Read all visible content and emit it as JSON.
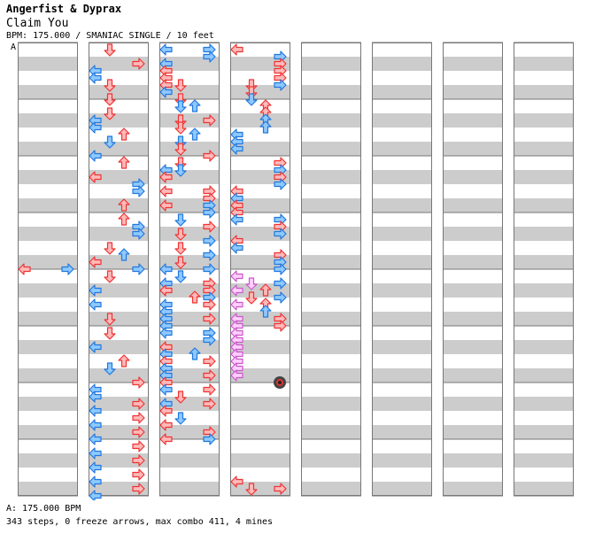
{
  "header": {
    "artist": "Angerfist & Dyprax",
    "song": "Claim You",
    "meta": "BPM: 175.000 / SMANIAC SINGLE / 10 feet",
    "segment_label": "A"
  },
  "footer": {
    "bpm_line": "A: 175.000 BPM",
    "stats_line": "343 steps, 0 freeze arrows, max combo 411, 4 mines"
  },
  "colors": {
    "band": "#cccccc",
    "border": "#777777",
    "red_fill": "#ffb9b9",
    "red_stroke": "#ee3333",
    "blue_fill": "#8ec9ff",
    "blue_stroke": "#2277dd",
    "pink_fill": "#ffd0ff",
    "pink_stroke": "#cc55cc",
    "mine_outer": "#444444",
    "mine_red": "#dd3333",
    "mine_blue": "#3377cc"
  },
  "chart_data": {
    "type": "step-chart",
    "lanes": [
      "left",
      "down",
      "up",
      "right"
    ],
    "columns": 8,
    "rows_per_column": 32,
    "step_types": {
      "r": "quarter note (red)",
      "b": "eighth note (blue)",
      "p": "sixteenth note (pink)",
      "m": "mine"
    },
    "notes": [
      [
        [
          31,
          0,
          "r"
        ],
        [
          31,
          3,
          "b"
        ]
      ],
      [
        [
          0,
          1,
          "r"
        ],
        [
          2,
          3,
          "r"
        ],
        [
          3,
          0,
          "b"
        ],
        [
          4,
          0,
          "b"
        ],
        [
          5,
          1,
          "r"
        ],
        [
          7,
          1,
          "r"
        ],
        [
          9,
          1,
          "r"
        ],
        [
          10,
          0,
          "b"
        ],
        [
          11,
          0,
          "b"
        ],
        [
          12,
          2,
          "r"
        ],
        [
          13,
          1,
          "b"
        ],
        [
          15,
          0,
          "b"
        ],
        [
          16,
          2,
          "r"
        ],
        [
          18,
          0,
          "r"
        ],
        [
          19,
          3,
          "b"
        ],
        [
          20,
          3,
          "b"
        ],
        [
          22,
          2,
          "r"
        ],
        [
          24,
          2,
          "r"
        ],
        [
          25,
          3,
          "b"
        ],
        [
          26,
          3,
          "b"
        ],
        [
          28,
          1,
          "r"
        ],
        [
          29,
          2,
          "b"
        ],
        [
          30,
          0,
          "r"
        ],
        [
          31,
          3,
          "b"
        ],
        [
          32,
          1,
          "r"
        ],
        [
          34,
          0,
          "b"
        ],
        [
          36,
          0,
          "b"
        ],
        [
          38,
          1,
          "r"
        ],
        [
          40,
          1,
          "r"
        ],
        [
          42,
          0,
          "b"
        ],
        [
          44,
          2,
          "r"
        ],
        [
          45,
          1,
          "b"
        ],
        [
          47,
          3,
          "r"
        ],
        [
          48,
          0,
          "b"
        ],
        [
          49,
          0,
          "b"
        ],
        [
          50,
          3,
          "r"
        ],
        [
          51,
          0,
          "b"
        ],
        [
          52,
          3,
          "r"
        ],
        [
          53,
          0,
          "b"
        ],
        [
          54,
          3,
          "r"
        ],
        [
          55,
          0,
          "b"
        ],
        [
          56,
          3,
          "r"
        ],
        [
          57,
          0,
          "b"
        ],
        [
          58,
          3,
          "r"
        ],
        [
          59,
          0,
          "b"
        ],
        [
          60,
          3,
          "r"
        ],
        [
          61,
          0,
          "b"
        ],
        [
          62,
          3,
          "r"
        ],
        [
          63,
          0,
          "b"
        ]
      ],
      [
        [
          0,
          0,
          "b"
        ],
        [
          0,
          3,
          "b"
        ],
        [
          1,
          3,
          "b"
        ],
        [
          2,
          0,
          "b"
        ],
        [
          3,
          0,
          "r"
        ],
        [
          4,
          0,
          "r"
        ],
        [
          5,
          1,
          "r"
        ],
        [
          5,
          0,
          "r"
        ],
        [
          6,
          0,
          "b"
        ],
        [
          7,
          1,
          "r"
        ],
        [
          8,
          1,
          "b"
        ],
        [
          8,
          2,
          "b"
        ],
        [
          10,
          1,
          "r"
        ],
        [
          10,
          3,
          "r"
        ],
        [
          11,
          1,
          "r"
        ],
        [
          12,
          2,
          "b"
        ],
        [
          13,
          1,
          "b"
        ],
        [
          14,
          1,
          "r"
        ],
        [
          15,
          3,
          "r"
        ],
        [
          16,
          1,
          "r"
        ],
        [
          17,
          0,
          "b"
        ],
        [
          17,
          1,
          "b"
        ],
        [
          18,
          0,
          "r"
        ],
        [
          20,
          0,
          "r"
        ],
        [
          20,
          3,
          "r"
        ],
        [
          21,
          3,
          "r"
        ],
        [
          22,
          0,
          "r"
        ],
        [
          22,
          3,
          "b"
        ],
        [
          23,
          3,
          "b"
        ],
        [
          24,
          1,
          "b"
        ],
        [
          25,
          3,
          "r"
        ],
        [
          26,
          1,
          "r"
        ],
        [
          27,
          3,
          "b"
        ],
        [
          28,
          1,
          "r"
        ],
        [
          29,
          3,
          "b"
        ],
        [
          30,
          1,
          "r"
        ],
        [
          31,
          0,
          "b"
        ],
        [
          31,
          3,
          "b"
        ],
        [
          32,
          1,
          "b"
        ],
        [
          33,
          0,
          "b"
        ],
        [
          33,
          3,
          "r"
        ],
        [
          34,
          0,
          "r"
        ],
        [
          34,
          3,
          "r"
        ],
        [
          35,
          2,
          "r"
        ],
        [
          35,
          3,
          "b"
        ],
        [
          36,
          0,
          "b"
        ],
        [
          36,
          3,
          "r"
        ],
        [
          37,
          0,
          "b"
        ],
        [
          38,
          0,
          "b"
        ],
        [
          38,
          3,
          "r"
        ],
        [
          39,
          0,
          "b"
        ],
        [
          40,
          0,
          "b"
        ],
        [
          40,
          3,
          "b"
        ],
        [
          41,
          3,
          "b"
        ],
        [
          42,
          0,
          "r"
        ],
        [
          43,
          0,
          "b"
        ],
        [
          43,
          2,
          "b"
        ],
        [
          44,
          0,
          "r"
        ],
        [
          44,
          3,
          "r"
        ],
        [
          45,
          0,
          "b"
        ],
        [
          46,
          0,
          "b"
        ],
        [
          46,
          3,
          "r"
        ],
        [
          47,
          0,
          "r"
        ],
        [
          48,
          0,
          "b"
        ],
        [
          48,
          3,
          "r"
        ],
        [
          49,
          1,
          "r"
        ],
        [
          50,
          0,
          "b"
        ],
        [
          50,
          3,
          "r"
        ],
        [
          51,
          0,
          "r"
        ],
        [
          52,
          1,
          "b"
        ],
        [
          53,
          0,
          "r"
        ],
        [
          54,
          3,
          "r"
        ],
        [
          55,
          0,
          "r"
        ],
        [
          55,
          3,
          "b"
        ]
      ],
      [
        [
          0,
          0,
          "r"
        ],
        [
          1,
          3,
          "b"
        ],
        [
          2,
          3,
          "r"
        ],
        [
          3,
          3,
          "r"
        ],
        [
          4,
          3,
          "r"
        ],
        [
          5,
          1,
          "r"
        ],
        [
          5,
          3,
          "b"
        ],
        [
          6,
          1,
          "r"
        ],
        [
          7,
          1,
          "b"
        ],
        [
          8,
          2,
          "r"
        ],
        [
          9,
          2,
          "r"
        ],
        [
          10,
          2,
          "b"
        ],
        [
          11,
          2,
          "b"
        ],
        [
          12,
          0,
          "b"
        ],
        [
          13,
          0,
          "b"
        ],
        [
          14,
          0,
          "b"
        ],
        [
          16,
          3,
          "r"
        ],
        [
          17,
          3,
          "b"
        ],
        [
          18,
          3,
          "r"
        ],
        [
          19,
          3,
          "b"
        ],
        [
          20,
          0,
          "r"
        ],
        [
          21,
          0,
          "b"
        ],
        [
          22,
          0,
          "r"
        ],
        [
          23,
          0,
          "r"
        ],
        [
          24,
          0,
          "b"
        ],
        [
          24,
          3,
          "b"
        ],
        [
          25,
          3,
          "r"
        ],
        [
          26,
          3,
          "b"
        ],
        [
          27,
          0,
          "r"
        ],
        [
          28,
          0,
          "b"
        ],
        [
          29,
          3,
          "r"
        ],
        [
          30,
          3,
          "b"
        ],
        [
          31,
          3,
          "b"
        ],
        [
          32,
          0,
          "p"
        ],
        [
          33,
          1,
          "p"
        ],
        [
          33,
          3,
          "b"
        ],
        [
          34,
          0,
          "p"
        ],
        [
          34,
          2,
          "r"
        ],
        [
          35,
          1,
          "r"
        ],
        [
          35,
          3,
          "b"
        ],
        [
          36,
          0,
          "p"
        ],
        [
          36,
          2,
          "r"
        ],
        [
          37,
          2,
          "b"
        ],
        [
          38,
          0,
          "p"
        ],
        [
          38,
          3,
          "r"
        ],
        [
          39,
          0,
          "p"
        ],
        [
          39,
          3,
          "r"
        ],
        [
          40,
          0,
          "p"
        ],
        [
          41,
          0,
          "p"
        ],
        [
          42,
          0,
          "p"
        ],
        [
          43,
          0,
          "p"
        ],
        [
          44,
          0,
          "p"
        ],
        [
          45,
          0,
          "p"
        ],
        [
          46,
          0,
          "p"
        ],
        [
          47,
          3,
          "m"
        ],
        [
          61,
          0,
          "r"
        ],
        [
          62,
          1,
          "r"
        ],
        [
          62,
          3,
          "r"
        ]
      ]
    ]
  }
}
